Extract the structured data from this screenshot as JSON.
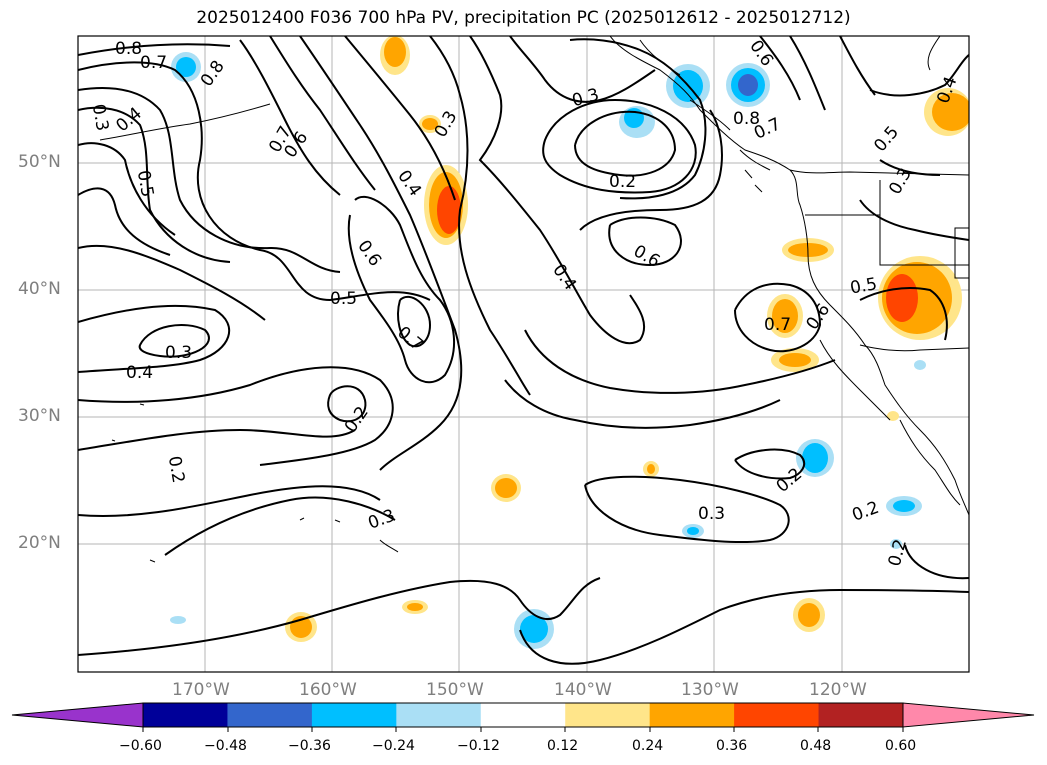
{
  "title": "2025012400 F036 700 hPa PV, precipitation PC (2025012612 - 2025012712)",
  "lat_labels": [
    "50°N",
    "40°N",
    "30°N",
    "20°N"
  ],
  "lon_labels": [
    "170°W",
    "160°W",
    "150°W",
    "140°W",
    "130°W",
    "120°W"
  ],
  "colorbar": {
    "tick_labels": [
      "−0.60",
      "−0.48",
      "−0.36",
      "−0.24",
      "−0.12",
      "0.12",
      "0.24",
      "0.36",
      "0.48",
      "0.60"
    ],
    "colors": [
      "#9933cc",
      "#000099",
      "#3366cc",
      "#00bfff",
      "#aadff5",
      "#ffffff",
      "#ffe58a",
      "#ffa500",
      "#ff4500",
      "#b22222",
      "#ff88aa"
    ]
  },
  "contour_labels": [
    "0.8",
    "0.7",
    "0.8",
    "0.3",
    "0.4",
    "0.5",
    "0.7",
    "0.6",
    "0.3",
    "0.4",
    "0.6",
    "0.5",
    "0.7",
    "0.3",
    "0.4",
    "0.2",
    "0.2",
    "0.3",
    "0.3",
    "0.2",
    "0.6",
    "0.4",
    "0.6",
    "0.8",
    "0.7",
    "0.5",
    "0.3",
    "0.4",
    "0.5",
    "0.7",
    "0.6",
    "0.2",
    "0.3",
    "0.2",
    "0.2"
  ]
}
